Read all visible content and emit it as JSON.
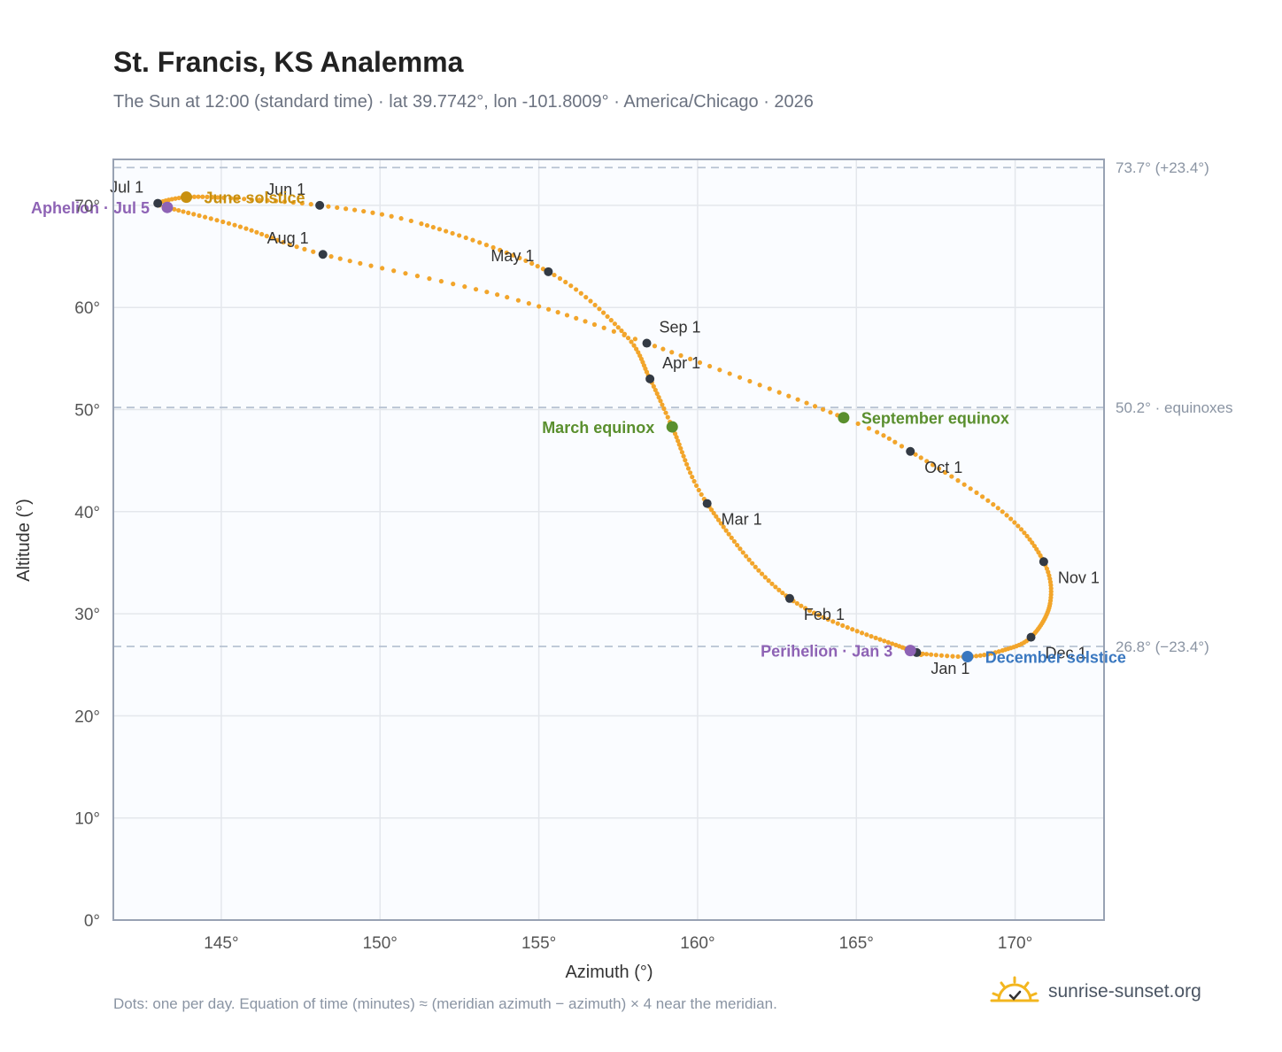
{
  "header": {
    "title": "St. Francis, KS Analemma",
    "subtitle": "The Sun at 12:00 (standard time) · lat 39.7742°, lon -101.8009° · America/Chicago · 2026"
  },
  "chart_data": {
    "type": "scatter",
    "xlabel": "Azimuth (°)",
    "ylabel": "Altitude (°)",
    "xlim": [
      141.6,
      172.8
    ],
    "ylim": [
      0,
      74.5
    ],
    "x_ticks": [
      145,
      150,
      155,
      160,
      165,
      170
    ],
    "y_ticks": [
      0,
      10,
      20,
      30,
      40,
      50,
      60,
      70
    ],
    "x_tick_labels": [
      "145°",
      "150°",
      "155°",
      "160°",
      "165°",
      "170°"
    ],
    "y_tick_labels": [
      "0°",
      "10°",
      "20°",
      "30°",
      "40°",
      "50°",
      "60°",
      "70°"
    ],
    "grid": true,
    "series_color": "#f2a52b",
    "anchors": [
      {
        "day": 1,
        "az": 166.9,
        "alt": 26.2
      },
      {
        "day": 3,
        "az": 166.7,
        "alt": 26.4
      },
      {
        "day": 32,
        "az": 162.9,
        "alt": 31.5
      },
      {
        "day": 60,
        "az": 160.3,
        "alt": 40.8
      },
      {
        "day": 79,
        "az": 159.2,
        "alt": 48.3
      },
      {
        "day": 91,
        "az": 158.5,
        "alt": 53.0
      },
      {
        "day": 104,
        "az": 157.7,
        "alt": 57.4
      },
      {
        "day": 121,
        "az": 155.3,
        "alt": 63.5
      },
      {
        "day": 141,
        "az": 151.3,
        "alt": 68.2
      },
      {
        "day": 152,
        "az": 148.1,
        "alt": 70.0
      },
      {
        "day": 163,
        "az": 145.3,
        "alt": 70.7
      },
      {
        "day": 172,
        "az": 143.9,
        "alt": 70.8
      },
      {
        "day": 182,
        "az": 143.0,
        "alt": 70.2
      },
      {
        "day": 186,
        "az": 143.3,
        "alt": 69.8
      },
      {
        "day": 200,
        "az": 145.6,
        "alt": 67.9
      },
      {
        "day": 213,
        "az": 148.2,
        "alt": 65.2
      },
      {
        "day": 230,
        "az": 154.0,
        "alt": 61.0
      },
      {
        "day": 244,
        "az": 158.4,
        "alt": 56.5
      },
      {
        "day": 266,
        "az": 164.6,
        "alt": 49.2
      },
      {
        "day": 274,
        "az": 166.7,
        "alt": 45.9
      },
      {
        "day": 290,
        "az": 169.6,
        "alt": 40.0
      },
      {
        "day": 305,
        "az": 170.9,
        "alt": 35.1
      },
      {
        "day": 318,
        "az": 171.1,
        "alt": 31.0
      },
      {
        "day": 335,
        "az": 170.5,
        "alt": 27.7
      },
      {
        "day": 346,
        "az": 169.6,
        "alt": 26.4
      },
      {
        "day": 355,
        "az": 168.5,
        "alt": 25.8
      },
      {
        "day": 365,
        "az": 167.0,
        "alt": 26.1
      }
    ],
    "month_markers": [
      {
        "label": "Jan 1",
        "az": 166.9,
        "alt": 26.2,
        "pos": "below-right"
      },
      {
        "label": "Feb 1",
        "az": 162.9,
        "alt": 31.5,
        "pos": "below-right"
      },
      {
        "label": "Mar 1",
        "az": 160.3,
        "alt": 40.8,
        "pos": "below-right"
      },
      {
        "label": "Apr 1",
        "az": 158.5,
        "alt": 53.0,
        "pos": "above-right"
      },
      {
        "label": "May 1",
        "az": 155.3,
        "alt": 63.5,
        "pos": "above-left"
      },
      {
        "label": "Jun 1",
        "az": 148.1,
        "alt": 70.0,
        "pos": "above-left"
      },
      {
        "label": "Jul 1",
        "az": 143.0,
        "alt": 70.2,
        "pos": "above-left"
      },
      {
        "label": "Aug 1",
        "az": 148.2,
        "alt": 65.2,
        "pos": "above-left"
      },
      {
        "label": "Sep 1",
        "az": 158.4,
        "alt": 56.5,
        "pos": "above-right"
      },
      {
        "label": "Oct 1",
        "az": 166.7,
        "alt": 45.9,
        "pos": "below-right"
      },
      {
        "label": "Nov 1",
        "az": 170.9,
        "alt": 35.1,
        "pos": "below-right"
      },
      {
        "label": "Dec 1",
        "az": 170.5,
        "alt": 27.7,
        "pos": "below-right"
      }
    ],
    "events": [
      {
        "label": "June solstice",
        "az": 143.9,
        "alt": 70.8,
        "color": "#c8900f",
        "pos": "right"
      },
      {
        "label": "Aphelion · Jul 5",
        "az": 143.3,
        "alt": 69.8,
        "color": "#8e63b5",
        "pos": "left"
      },
      {
        "label": "March equinox",
        "az": 159.2,
        "alt": 48.3,
        "color": "#5a8f2e",
        "pos": "left"
      },
      {
        "label": "September equinox",
        "az": 164.6,
        "alt": 49.2,
        "color": "#5a8f2e",
        "pos": "right"
      },
      {
        "label": "Perihelion · Jan 3",
        "az": 166.7,
        "alt": 26.4,
        "color": "#8e63b5",
        "pos": "left"
      },
      {
        "label": "December solstice",
        "az": 168.5,
        "alt": 25.8,
        "color": "#3a78c0",
        "pos": "right"
      }
    ],
    "reference_lines": [
      {
        "alt": 73.7,
        "label": "73.7° (+23.4°)"
      },
      {
        "alt": 50.2,
        "label": "50.2° · equinoxes"
      },
      {
        "alt": 26.8,
        "label": "26.8° (−23.4°)"
      }
    ]
  },
  "footer": {
    "note": "Dots: one per day. Equation of time (minutes) ≈ (meridian azimuth − azimuth) × 4 near the meridian.",
    "brand": "sunrise-sunset.org",
    "brand_icon": "sun-icon"
  }
}
